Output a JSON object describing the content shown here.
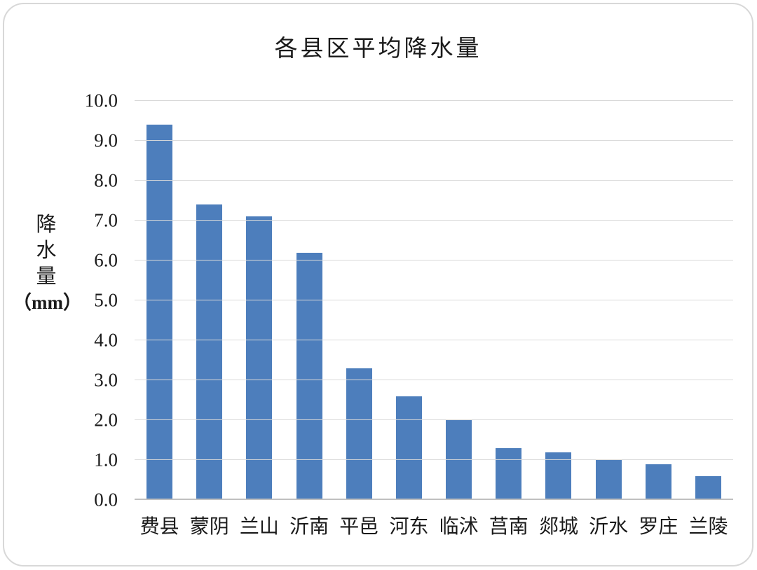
{
  "chart_data": {
    "type": "bar",
    "title": "各县区平均降水量",
    "categories": [
      "费县",
      "蒙阴",
      "兰山",
      "沂南",
      "平邑",
      "河东",
      "临沭",
      "莒南",
      "郯城",
      "沂水",
      "罗庄",
      "兰陵"
    ],
    "values": [
      9.4,
      7.4,
      7.1,
      6.2,
      3.3,
      2.6,
      2.0,
      1.3,
      1.2,
      1.0,
      0.9,
      0.6
    ],
    "ylabel_lines": [
      "降",
      "水",
      "量"
    ],
    "ylabel_unit": "（mm）",
    "ylim": [
      0,
      10
    ],
    "ytick_labels": [
      "0.0",
      "1.0",
      "2.0",
      "3.0",
      "4.0",
      "5.0",
      "6.0",
      "7.0",
      "8.0",
      "9.0",
      "10.0"
    ],
    "grid": true,
    "legend": "none",
    "bar_color": "#4d7ebc",
    "gridline_color": "#d9d9d9",
    "axis_line_color": "#c0c0c0",
    "text_color": "#1a1a1a"
  }
}
